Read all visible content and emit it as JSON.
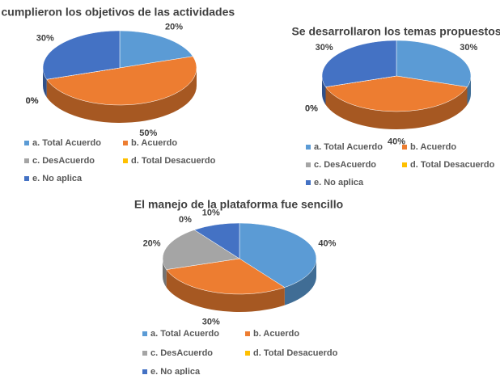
{
  "chart_data": [
    {
      "type": "pie",
      "title": "e cumplieron los objetivos de las actividades",
      "categories": [
        "a. Total Acuerdo",
        "b. Acuerdo",
        "c. DesAcuerdo",
        "d. Total Desacuerdo",
        "e. No aplica"
      ],
      "values": [
        20,
        50,
        0,
        0,
        30
      ],
      "value_labels": [
        "20%",
        "50%",
        "0%",
        "0%",
        "30%"
      ],
      "colors": [
        "#5b9bd5",
        "#ed7d31",
        "#a5a5a5",
        "#ffc000",
        "#4472c4"
      ]
    },
    {
      "type": "pie",
      "title": "Se desarrollaron los temas propuestos",
      "categories": [
        "a. Total Acuerdo",
        "b. Acuerdo",
        "c. DesAcuerdo",
        "d. Total Desacuerdo",
        "e. No aplica"
      ],
      "values": [
        30,
        40,
        0,
        0,
        30
      ],
      "value_labels": [
        "30%",
        "40%",
        "0%",
        "0%",
        "30%"
      ],
      "colors": [
        "#5b9bd5",
        "#ed7d31",
        "#a5a5a5",
        "#ffc000",
        "#4472c4"
      ]
    },
    {
      "type": "pie",
      "title": "El manejo de la plataforma fue sencillo",
      "categories": [
        "a. Total Acuerdo",
        "b. Acuerdo",
        "c. DesAcuerdo",
        "d. Total Desacuerdo",
        "e. No aplica"
      ],
      "values": [
        40,
        30,
        20,
        0,
        10
      ],
      "value_labels": [
        "40%",
        "30%",
        "20%",
        "0%",
        "10%"
      ],
      "colors": [
        "#5b9bd5",
        "#ed7d31",
        "#a5a5a5",
        "#ffc000",
        "#4472c4"
      ]
    }
  ]
}
